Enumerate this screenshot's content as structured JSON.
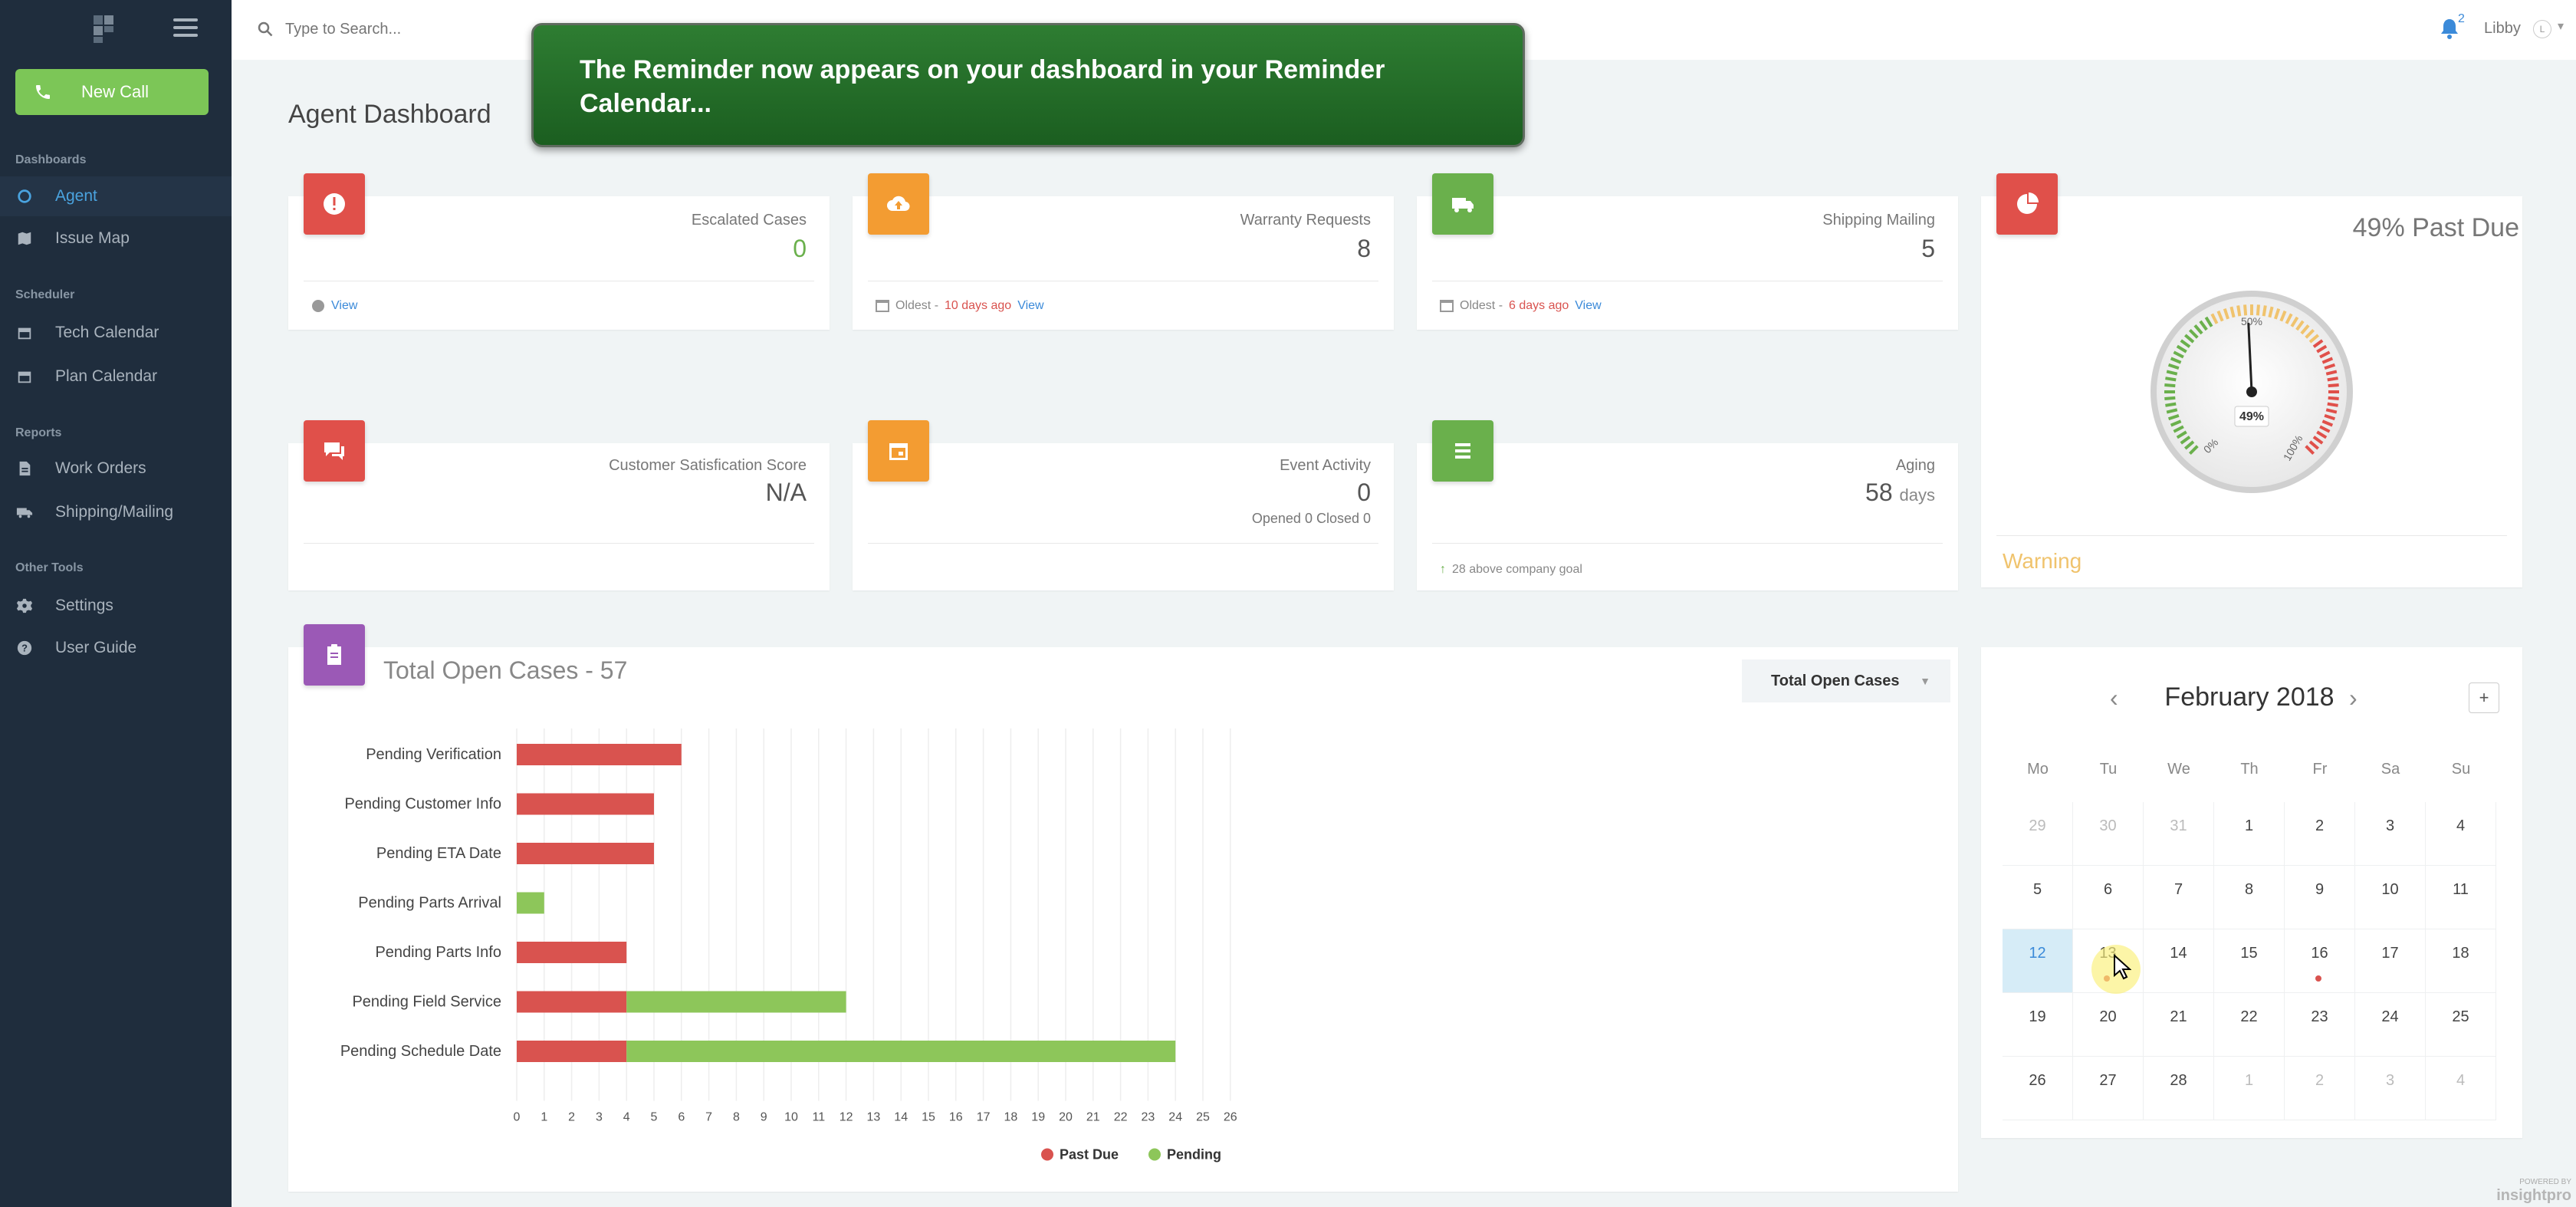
{
  "sidebar": {
    "new_call": "New Call",
    "sections": [
      {
        "title": "Dashboards",
        "items": [
          {
            "label": "Agent",
            "icon": "circle-icon"
          },
          {
            "label": "Issue Map",
            "icon": "map-icon"
          }
        ]
      },
      {
        "title": "Scheduler",
        "items": [
          {
            "label": "Tech Calendar",
            "icon": "calendar-icon"
          },
          {
            "label": "Plan Calendar",
            "icon": "calendar-icon"
          }
        ]
      },
      {
        "title": "Reports",
        "items": [
          {
            "label": "Work Orders",
            "icon": "document-icon"
          },
          {
            "label": "Shipping/Mailing",
            "icon": "truck-icon"
          }
        ]
      },
      {
        "title": "Other Tools",
        "items": [
          {
            "label": "Settings",
            "icon": "gear-icon"
          },
          {
            "label": "User Guide",
            "icon": "question-icon"
          }
        ]
      }
    ]
  },
  "topbar": {
    "search_placeholder": "Type to Search...",
    "notification_count": "2",
    "user_name": "Libby",
    "user_initial": "L"
  },
  "tooltip": {
    "text": "The Reminder now appears on your dashboard in your Reminder Calendar..."
  },
  "page_title": "Agent Dashboard",
  "colors": {
    "red": "#e0504a",
    "orange": "#f39c32",
    "green": "#6ab04c",
    "purple": "#9b59b6",
    "past_due": "#d9534f",
    "pending": "#8dc65a"
  },
  "stats": {
    "escalated": {
      "label": "Escalated Cases",
      "value": "0",
      "footer_link": "View"
    },
    "warranty": {
      "label": "Warranty Requests",
      "value": "8",
      "oldest": "Oldest -",
      "age": "10 days ago",
      "link": "View"
    },
    "shipping": {
      "label": "Shipping Mailing",
      "value": "5",
      "oldest": "Oldest -",
      "age": "6 days ago",
      "link": "View"
    },
    "csat": {
      "label": "Customer Satisfication Score",
      "value": "N/A"
    },
    "event": {
      "label": "Event Activity",
      "value": "0",
      "sub": "Opened 0 Closed 0"
    },
    "aging": {
      "label": "Aging",
      "value": "58",
      "unit": "days",
      "footer": "28 above company goal"
    }
  },
  "gauge": {
    "title": "49% Past Due",
    "value_label": "49%",
    "percent": 49,
    "tick_labels": [
      "0%",
      "50%",
      "100%"
    ],
    "status": "Warning"
  },
  "chart": {
    "title": "Total Open Cases - 57",
    "select_label": "Total Open Cases"
  },
  "chart_data": {
    "type": "bar",
    "orientation": "horizontal",
    "stacked": true,
    "categories": [
      "Pending Verification",
      "Pending Customer Info",
      "Pending ETA Date",
      "Pending Parts Arrival",
      "Pending Parts Info",
      "Pending Field Service",
      "Pending Schedule Date"
    ],
    "series": [
      {
        "name": "Past Due",
        "color": "#d9534f",
        "values": [
          6,
          5,
          5,
          0,
          4,
          4,
          4
        ]
      },
      {
        "name": "Pending",
        "color": "#8dc65a",
        "values": [
          0,
          0,
          0,
          1,
          0,
          8,
          20
        ]
      }
    ],
    "xlim": [
      0,
      26
    ],
    "xticks": [
      0,
      1,
      2,
      3,
      4,
      5,
      6,
      7,
      8,
      9,
      10,
      11,
      12,
      13,
      14,
      15,
      16,
      17,
      18,
      19,
      20,
      21,
      22,
      23,
      24,
      25,
      26
    ],
    "grid": true,
    "legend": "bottom"
  },
  "calendar": {
    "month_label": "February 2018",
    "prev": "‹",
    "next": "›",
    "add": "+",
    "weekdays": [
      "Mo",
      "Tu",
      "We",
      "Th",
      "Fr",
      "Sa",
      "Su"
    ],
    "weeks": [
      [
        "29",
        "30",
        "31",
        "1",
        "2",
        "3",
        "4"
      ],
      [
        "5",
        "6",
        "7",
        "8",
        "9",
        "10",
        "11"
      ],
      [
        "12",
        "13",
        "14",
        "15",
        "16",
        "17",
        "18"
      ],
      [
        "19",
        "20",
        "21",
        "22",
        "23",
        "24",
        "25"
      ],
      [
        "26",
        "27",
        "28",
        "1",
        "2",
        "3",
        "4"
      ]
    ],
    "muted_first_week": [
      "29",
      "30",
      "31"
    ],
    "muted_last_week": [
      "1",
      "2",
      "3",
      "4"
    ],
    "today": "12",
    "event_days": [
      "13",
      "16"
    ]
  },
  "footer": {
    "powered_by": "POWERED BY",
    "brand": "insightpro"
  }
}
